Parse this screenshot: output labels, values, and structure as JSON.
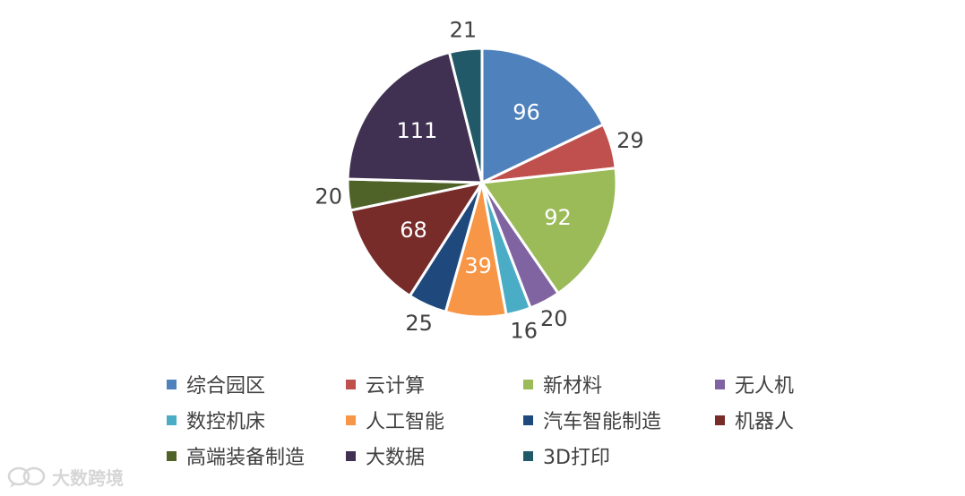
{
  "chart_data": {
    "type": "pie",
    "start_angle_deg": 0,
    "direction": "clockwise",
    "slices": [
      {
        "label": "综合园区",
        "value": 96,
        "color": "#4F81BD",
        "label_inside": true
      },
      {
        "label": "云计算",
        "value": 29,
        "color": "#C0504D",
        "label_inside": false
      },
      {
        "label": "新材料",
        "value": 92,
        "color": "#9BBB59",
        "label_inside": true
      },
      {
        "label": "无人机",
        "value": 20,
        "color": "#8064A2",
        "label_inside": false
      },
      {
        "label": "数控机床",
        "value": 16,
        "color": "#4BACC6",
        "label_inside": false
      },
      {
        "label": "人工智能",
        "value": 39,
        "color": "#F79646",
        "label_inside": true
      },
      {
        "label": "汽车智能制造",
        "value": 25,
        "color": "#1F497D",
        "label_inside": false
      },
      {
        "label": "机器人",
        "value": 68,
        "color": "#772C2A",
        "label_inside": true
      },
      {
        "label": "高端装备制造",
        "value": 20,
        "color": "#4F6228",
        "label_inside": false
      },
      {
        "label": "大数据",
        "value": 111,
        "color": "#403152",
        "label_inside": true
      },
      {
        "label": "3D打印",
        "value": 21,
        "color": "#215968",
        "label_inside": false
      }
    ],
    "data_labels": true,
    "legend_position": "bottom"
  },
  "watermark": {
    "text": "大数跨境",
    "logo_icon": "chat-bubbles-logo-icon"
  }
}
